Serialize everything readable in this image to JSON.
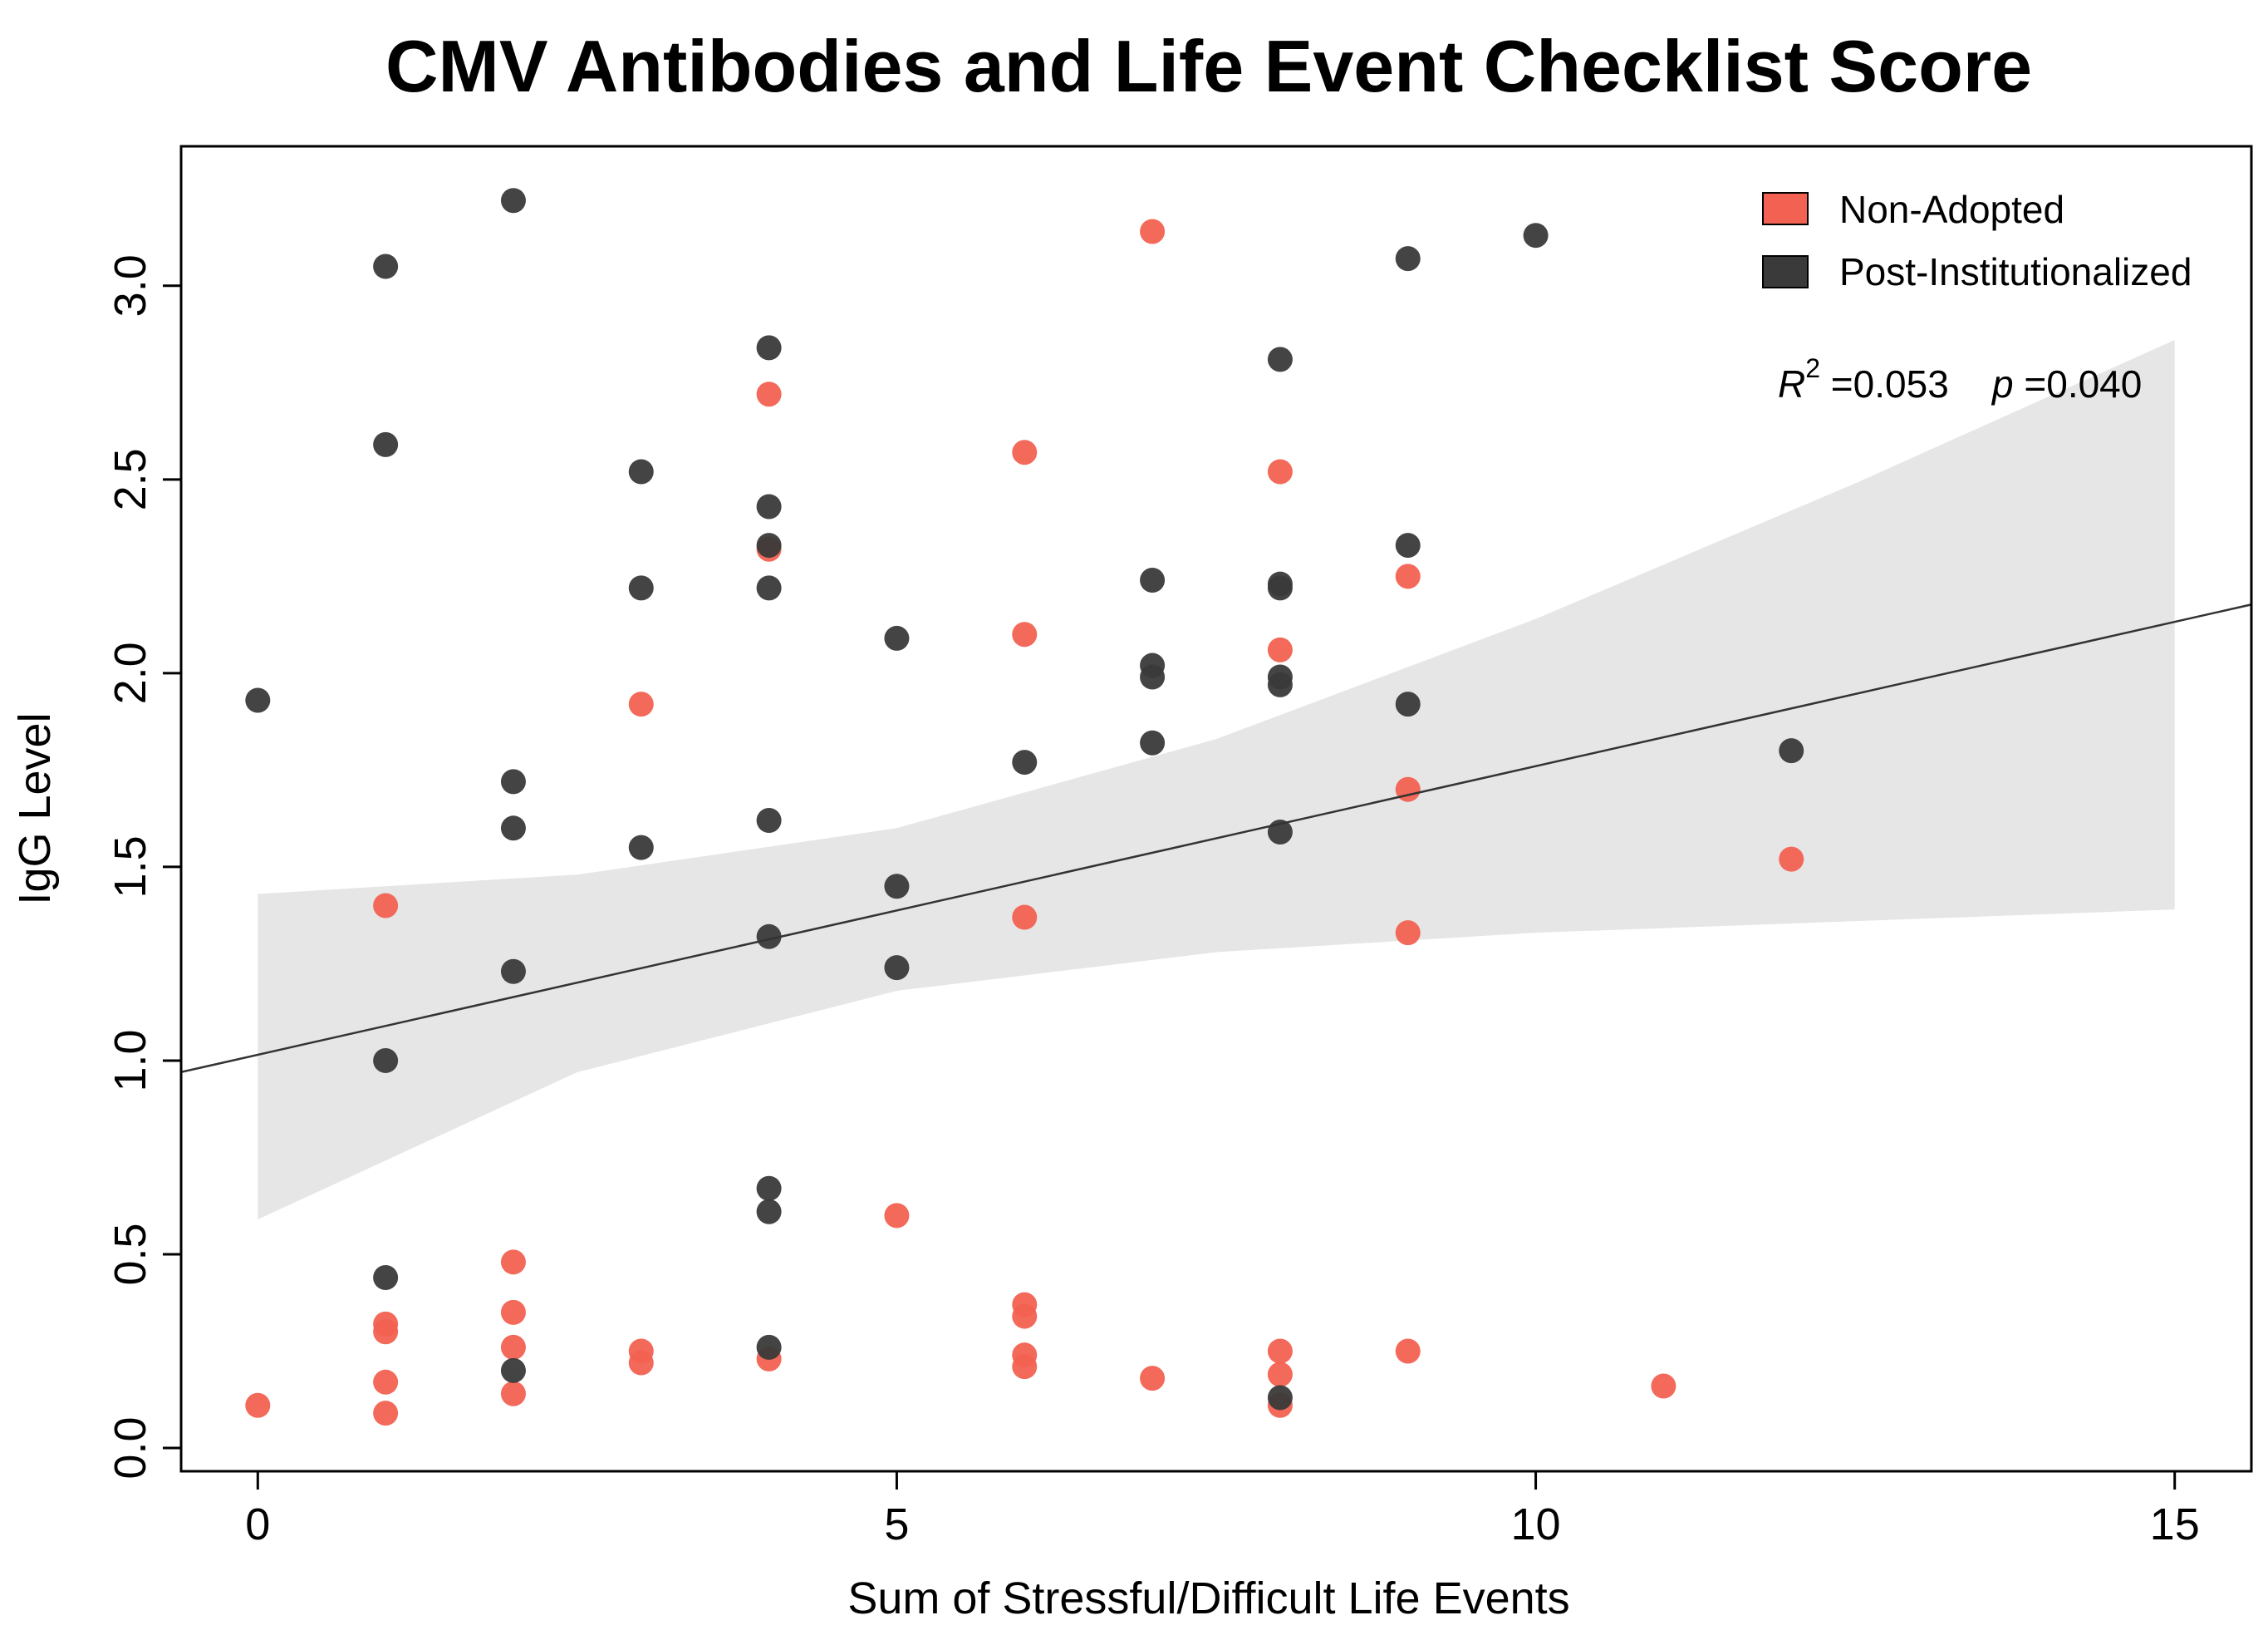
{
  "chart_data": {
    "type": "scatter",
    "title": "CMV Antibodies and Life Event Checklist Score",
    "xlabel": "Sum of Stressful/Difficult Life Events",
    "ylabel": "IgG Level",
    "xlim": [
      -0.6,
      15.6
    ],
    "ylim": [
      -0.06,
      3.36
    ],
    "xticks": [
      0,
      5,
      10,
      15
    ],
    "xtick_labels": [
      "0",
      "5",
      "10",
      "15"
    ],
    "yticks": [
      0.0,
      0.5,
      1.0,
      1.5,
      2.0,
      2.5,
      3.0
    ],
    "ytick_labels": [
      "0.0",
      "0.5",
      "1.0",
      "1.5",
      "2.0",
      "2.5",
      "3.0"
    ],
    "legend_position": "top-right",
    "series": [
      {
        "name": "Non-Adopted",
        "color": "#f26151",
        "points": [
          [
            0,
            0.11
          ],
          [
            1,
            1.4
          ],
          [
            1,
            0.32
          ],
          [
            1,
            0.3
          ],
          [
            1,
            0.17
          ],
          [
            1,
            0.09
          ],
          [
            2,
            0.48
          ],
          [
            2,
            0.35
          ],
          [
            2,
            0.26
          ],
          [
            2,
            0.14
          ],
          [
            3,
            1.92
          ],
          [
            3,
            0.25
          ],
          [
            3,
            0.22
          ],
          [
            4,
            2.72
          ],
          [
            4,
            2.32
          ],
          [
            4,
            0.23
          ],
          [
            5,
            0.6
          ],
          [
            6,
            2.57
          ],
          [
            6,
            2.1
          ],
          [
            6,
            1.37
          ],
          [
            6,
            0.37
          ],
          [
            6,
            0.34
          ],
          [
            6,
            0.24
          ],
          [
            6,
            0.21
          ],
          [
            7,
            3.14
          ],
          [
            7,
            0.18
          ],
          [
            8,
            2.52
          ],
          [
            8,
            2.06
          ],
          [
            8,
            0.25
          ],
          [
            8,
            0.19
          ],
          [
            8,
            0.11
          ],
          [
            9,
            2.25
          ],
          [
            9,
            1.7
          ],
          [
            9,
            1.33
          ],
          [
            9,
            0.25
          ],
          [
            11,
            0.16
          ],
          [
            12,
            1.52
          ]
        ]
      },
      {
        "name": "Post-Institutionalized",
        "color": "#3a3a3a",
        "points": [
          [
            0,
            1.93
          ],
          [
            1,
            3.05
          ],
          [
            1,
            2.59
          ],
          [
            1,
            1.0
          ],
          [
            1,
            0.44
          ],
          [
            2,
            3.22
          ],
          [
            2,
            1.72
          ],
          [
            2,
            1.6
          ],
          [
            2,
            1.23
          ],
          [
            2,
            0.2
          ],
          [
            3,
            2.52
          ],
          [
            3,
            2.22
          ],
          [
            3,
            1.55
          ],
          [
            4,
            2.84
          ],
          [
            4,
            2.43
          ],
          [
            4,
            2.33
          ],
          [
            4,
            2.22
          ],
          [
            4,
            1.62
          ],
          [
            4,
            1.32
          ],
          [
            4,
            0.67
          ],
          [
            4,
            0.61
          ],
          [
            4,
            0.26
          ],
          [
            5,
            2.09
          ],
          [
            5,
            1.45
          ],
          [
            5,
            1.24
          ],
          [
            6,
            1.77
          ],
          [
            7,
            2.24
          ],
          [
            7,
            2.02
          ],
          [
            7,
            1.99
          ],
          [
            7,
            1.82
          ],
          [
            8,
            2.81
          ],
          [
            8,
            2.23
          ],
          [
            8,
            2.22
          ],
          [
            8,
            1.99
          ],
          [
            8,
            1.97
          ],
          [
            8,
            1.59
          ],
          [
            8,
            0.13
          ],
          [
            9,
            3.07
          ],
          [
            9,
            2.33
          ],
          [
            9,
            1.92
          ],
          [
            10,
            3.13
          ],
          [
            12,
            1.8
          ]
        ]
      }
    ],
    "regression": {
      "intercept": 1.015,
      "slope": 0.0745,
      "x_range": [
        -0.6,
        15.6
      ],
      "ci_band": {
        "x": [
          0,
          2.5,
          5,
          7.5,
          10,
          12.5,
          15
        ],
        "lower": [
          0.59,
          0.97,
          1.18,
          1.28,
          1.33,
          1.36,
          1.39
        ],
        "upper": [
          1.43,
          1.48,
          1.6,
          1.83,
          2.14,
          2.49,
          2.86
        ]
      },
      "band_color": "#e6e6e6",
      "line_color": "#333333"
    },
    "annotation": {
      "r2_label": "R",
      "r2_sup": "2",
      "r2_value": " =0.053",
      "p_label": "p",
      "p_value": " =0.040"
    }
  }
}
